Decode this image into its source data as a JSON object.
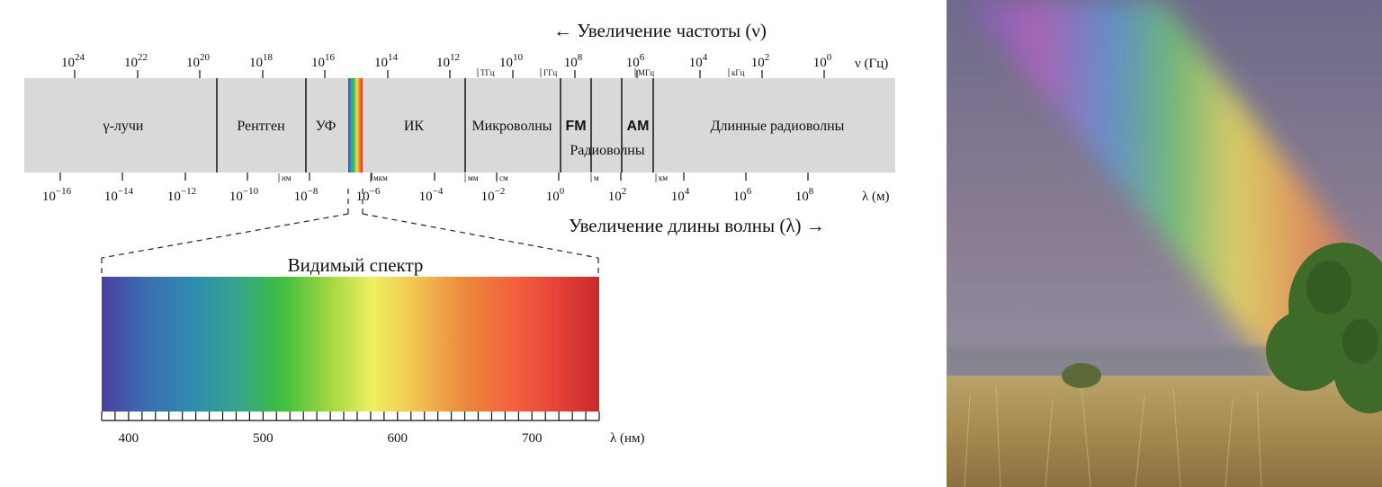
{
  "spectrum": {
    "frequency_header": "← Увеличение частоты (ν)",
    "frequency_unit": "ν (Гц)",
    "frequency_ticks": [
      {
        "base": "10",
        "exp": "24"
      },
      {
        "base": "10",
        "exp": "22"
      },
      {
        "base": "10",
        "exp": "20"
      },
      {
        "base": "10",
        "exp": "18"
      },
      {
        "base": "10",
        "exp": "16"
      },
      {
        "base": "10",
        "exp": "14"
      },
      {
        "base": "10",
        "exp": "12"
      },
      {
        "base": "10",
        "exp": "10"
      },
      {
        "base": "10",
        "exp": "8"
      },
      {
        "base": "10",
        "exp": "6"
      },
      {
        "base": "10",
        "exp": "4"
      },
      {
        "base": "10",
        "exp": "2"
      },
      {
        "base": "10",
        "exp": "0"
      }
    ],
    "frequency_unit_marks": [
      "ТГц",
      "ГГц",
      "МГц",
      "кГц"
    ],
    "wavelength_footer": "Увеличение длины волны (λ) →",
    "wavelength_unit": "λ (м)",
    "wavelength_ticks": [
      {
        "base": "10",
        "exp": "−16"
      },
      {
        "base": "10",
        "exp": "−14"
      },
      {
        "base": "10",
        "exp": "−12"
      },
      {
        "base": "10",
        "exp": "−10"
      },
      {
        "base": "10",
        "exp": "−8"
      },
      {
        "base": "10",
        "exp": "−6"
      },
      {
        "base": "10",
        "exp": "−4"
      },
      {
        "base": "10",
        "exp": "−2"
      },
      {
        "base": "10",
        "exp": "0"
      },
      {
        "base": "10",
        "exp": "2"
      },
      {
        "base": "10",
        "exp": "4"
      },
      {
        "base": "10",
        "exp": "6"
      },
      {
        "base": "10",
        "exp": "8"
      }
    ],
    "wavelength_unit_marks": [
      "нм",
      "мкм",
      "мм",
      "см",
      "м",
      "км"
    ],
    "bands": {
      "gamma": "γ-лучи",
      "xray": "Рентген",
      "uv": "УФ",
      "ir": "ИК",
      "microwave": "Микроволны",
      "fm": "FM",
      "am": "AM",
      "radio": "Радиоволны",
      "long_radio": "Длинные радиоволны"
    },
    "band_color": "#d9d9d9"
  },
  "visible": {
    "title": "Видимый спектр",
    "unit": "λ (нм)",
    "ticks": [
      "400",
      "500",
      "600",
      "700"
    ],
    "range_nm": [
      380,
      750
    ],
    "gradient_colors": [
      "#4b3f9e",
      "#3a6fb0",
      "#2f8bb0",
      "#35a48a",
      "#3fbf3f",
      "#9fd640",
      "#eef060",
      "#f3c050",
      "#ea8a3c",
      "#f4643e",
      "#e8443a",
      "#c62a2a"
    ]
  },
  "photo": {
    "subject": "rainbow over field",
    "sky_color": "#8b7a8c",
    "grass_color": "#b39a5c",
    "tree_color": "#3e6a2a"
  }
}
